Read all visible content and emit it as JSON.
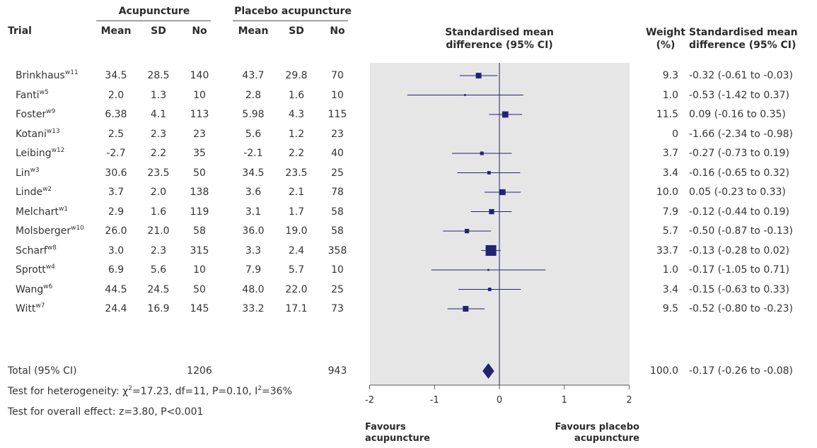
{
  "headers": {
    "trial": "Trial",
    "group1": "Acupuncture",
    "group2": "Placebo acupuncture",
    "mean": "Mean",
    "sd": "SD",
    "no": "No",
    "smd_line1": "Standardised mean",
    "smd_line2": "difference (95% CI)",
    "weight_line1": "Weight",
    "weight_line2": "(%)",
    "ci_line1": "Standardised mean",
    "ci_line2": "difference (95% CI)"
  },
  "chart_data": {
    "type": "forest",
    "xlim": [
      -2,
      2
    ],
    "xticks": [
      "-2",
      "-1",
      "0",
      "1",
      "2"
    ],
    "xtick_values": [
      -2,
      -1,
      0,
      1,
      2
    ],
    "favours_left_1": "Favours",
    "favours_left_2": "acupuncture",
    "favours_right_1": "Favours placebo",
    "favours_right_2": "acupuncture",
    "colors": {
      "marker": "#232373",
      "panel": "#e6e6e6",
      "line": "#232373"
    },
    "studies": [
      {
        "name": "Brinkhaus",
        "ref": "w11",
        "acu_mean": "34.5",
        "acu_sd": "28.5",
        "acu_n": "140",
        "pl_mean": "43.7",
        "pl_sd": "29.8",
        "pl_n": "70",
        "weight": "9.3",
        "ci_text": "-0.32 (-0.61 to -0.03)",
        "smd": -0.32,
        "lo": -0.61,
        "hi": -0.03
      },
      {
        "name": "Fanti",
        "ref": "w5",
        "acu_mean": "2.0",
        "acu_sd": "1.3",
        "acu_n": "10",
        "pl_mean": "2.8",
        "pl_sd": "1.6",
        "pl_n": "10",
        "weight": "1.0",
        "ci_text": "-0.53 (-1.42 to 0.37)",
        "smd": -0.53,
        "lo": -1.42,
        "hi": 0.37
      },
      {
        "name": "Foster",
        "ref": "w9",
        "acu_mean": "6.38",
        "acu_sd": "4.1",
        "acu_n": "113",
        "pl_mean": "5.98",
        "pl_sd": "4.3",
        "pl_n": "115",
        "weight": "11.5",
        "ci_text": "0.09 (-0.16 to 0.35)",
        "smd": 0.09,
        "lo": -0.16,
        "hi": 0.35
      },
      {
        "name": "Kotani",
        "ref": "w13",
        "acu_mean": "2.5",
        "acu_sd": "2.3",
        "acu_n": "23",
        "pl_mean": "5.6",
        "pl_sd": "1.2",
        "pl_n": "23",
        "weight": "0",
        "ci_text": "-1.66 (-2.34 to -0.98)",
        "smd": null,
        "lo": null,
        "hi": null
      },
      {
        "name": "Leibing",
        "ref": "w12",
        "acu_mean": "-2.7",
        "acu_sd": "2.2",
        "acu_n": "35",
        "pl_mean": "-2.1",
        "pl_sd": "2.2",
        "pl_n": "40",
        "weight": "3.7",
        "ci_text": "-0.27 (-0.73 to 0.19)",
        "smd": -0.27,
        "lo": -0.73,
        "hi": 0.19
      },
      {
        "name": "Lin",
        "ref": "w3",
        "acu_mean": "30.6",
        "acu_sd": "23.5",
        "acu_n": "50",
        "pl_mean": "34.5",
        "pl_sd": "23.5",
        "pl_n": "25",
        "weight": "3.4",
        "ci_text": "-0.16 (-0.65 to 0.32)",
        "smd": -0.16,
        "lo": -0.65,
        "hi": 0.32
      },
      {
        "name": "Linde",
        "ref": "w2",
        "acu_mean": "3.7",
        "acu_sd": "2.0",
        "acu_n": "138",
        "pl_mean": "3.6",
        "pl_sd": "2.1",
        "pl_n": "78",
        "weight": "10.0",
        "ci_text": "0.05 (-0.23 to 0.33)",
        "smd": 0.05,
        "lo": -0.23,
        "hi": 0.33
      },
      {
        "name": "Melchart",
        "ref": "w1",
        "acu_mean": "2.9",
        "acu_sd": "1.6",
        "acu_n": "119",
        "pl_mean": "3.1",
        "pl_sd": "1.7",
        "pl_n": "58",
        "weight": "7.9",
        "ci_text": "-0.12 (-0.44 to 0.19)",
        "smd": -0.12,
        "lo": -0.44,
        "hi": 0.19
      },
      {
        "name": "Molsberger",
        "ref": "w10",
        "acu_mean": "26.0",
        "acu_sd": "21.0",
        "acu_n": "58",
        "pl_mean": "36.0",
        "pl_sd": "19.0",
        "pl_n": "58",
        "weight": "5.7",
        "ci_text": "-0.50 (-0.87 to -0.13)",
        "smd": -0.5,
        "lo": -0.87,
        "hi": -0.13
      },
      {
        "name": "Scharf",
        "ref": "w8",
        "acu_mean": "3.0",
        "acu_sd": "2.3",
        "acu_n": "315",
        "pl_mean": "3.3",
        "pl_sd": "2.4",
        "pl_n": "358",
        "weight": "33.7",
        "ci_text": "-0.13 (-0.28 to 0.02)",
        "smd": -0.13,
        "lo": -0.28,
        "hi": 0.02
      },
      {
        "name": "Sprott",
        "ref": "w4",
        "acu_mean": "6.9",
        "acu_sd": "5.6",
        "acu_n": "10",
        "pl_mean": "7.9",
        "pl_sd": "5.7",
        "pl_n": "10",
        "weight": "1.0",
        "ci_text": "-0.17 (-1.05 to 0.71)",
        "smd": -0.17,
        "lo": -1.05,
        "hi": 0.71
      },
      {
        "name": "Wang",
        "ref": "w6",
        "acu_mean": "44.5",
        "acu_sd": "24.5",
        "acu_n": "50",
        "pl_mean": "48.0",
        "pl_sd": "22.0",
        "pl_n": "25",
        "weight": "3.4",
        "ci_text": "-0.15 (-0.63 to 0.33)",
        "smd": -0.15,
        "lo": -0.63,
        "hi": 0.33
      },
      {
        "name": "Witt",
        "ref": "w7",
        "acu_mean": "24.4",
        "acu_sd": "16.9",
        "acu_n": "145",
        "pl_mean": "33.2",
        "pl_sd": "17.1",
        "pl_n": "73",
        "weight": "9.5",
        "ci_text": "-0.52 (-0.80 to -0.23)",
        "smd": -0.52,
        "lo": -0.8,
        "hi": -0.23
      }
    ],
    "total": {
      "label": "Total (95% CI)",
      "acu_n": "1206",
      "pl_n": "943",
      "weight": "100.0",
      "ci_text": "-0.17 (-0.26 to -0.08)",
      "smd": -0.17,
      "lo": -0.26,
      "hi": -0.08
    }
  },
  "footer": {
    "heterogeneity_prefix": "Test for heterogeneity: ",
    "chi": "χ",
    "chi_sup": "2",
    "heterogeneity_mid": "=17.23, df=11, P=0.10, I",
    "i_sup": "2",
    "heterogeneity_end": "=36%",
    "overall": "Test for overall effect: z=3.80, P<0.001"
  }
}
